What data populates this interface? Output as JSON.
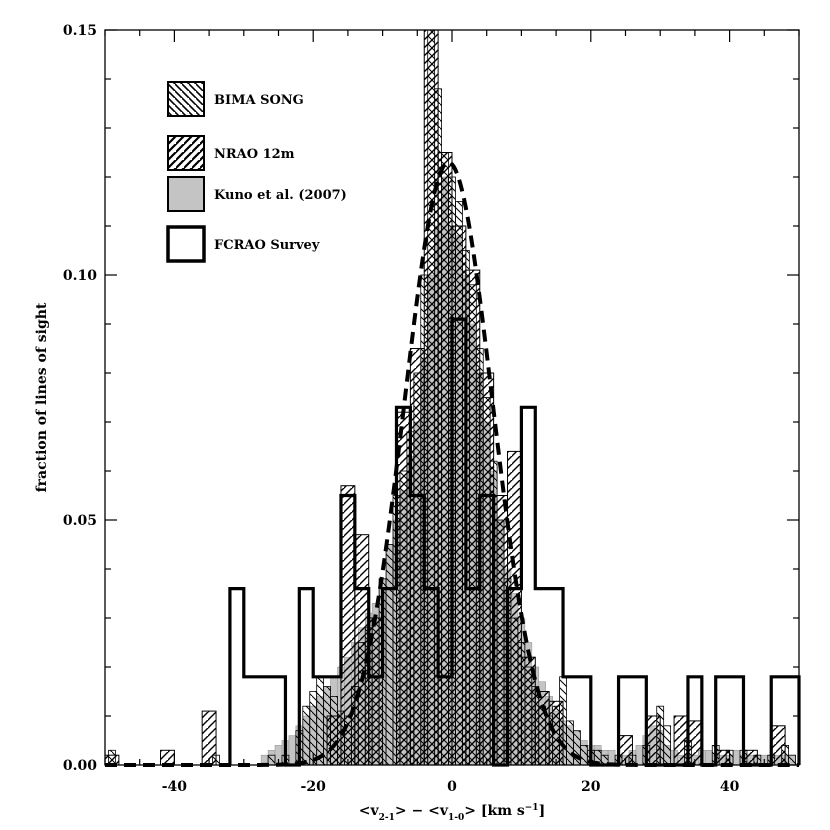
{
  "chart_data": {
    "type": "bar",
    "xlabel": "<v",
    "xlabel_sub1": "2-1",
    "xlabel_mid": "> − <v",
    "xlabel_sub2": "1-0",
    "xlabel_unit": "> [km s",
    "xlabel_sup": "−1",
    "xlabel_end": "]",
    "ylabel": "fraction of lines of sight",
    "xlim": [
      -50,
      50
    ],
    "ylim": [
      0,
      0.15
    ],
    "x_ticks": [
      -40,
      -20,
      0,
      20,
      40
    ],
    "y_ticks": [
      0.0,
      0.05,
      0.1,
      0.15
    ],
    "y_tick_labels": [
      "0.00",
      "0.05",
      "0.10",
      "0.15"
    ],
    "legend_position": "top-left",
    "legend": [
      {
        "name": "BIMA SONG",
        "style": "hatch-backslash"
      },
      {
        "name": "NRAO 12m",
        "style": "hatch-slash"
      },
      {
        "name": "Kuno et al. (2007)",
        "style": "gray-fill"
      },
      {
        "name": "FCRAO Survey",
        "style": "thick-outline"
      }
    ],
    "series": [
      {
        "name": "BIMA SONG",
        "bin_width": 1,
        "bins": [
          [
            -49,
            0.003
          ],
          [
            -34,
            0.002
          ],
          [
            -26,
            0.002
          ],
          [
            -24,
            0.002
          ],
          [
            -22,
            0.007
          ],
          [
            -21,
            0.012
          ],
          [
            -20,
            0.015
          ],
          [
            -19,
            0.018
          ],
          [
            -18,
            0.016
          ],
          [
            -17,
            0.014
          ],
          [
            -16,
            0.011
          ],
          [
            -15,
            0.01
          ],
          [
            -14,
            0.016
          ],
          [
            -13,
            0.025
          ],
          [
            -12,
            0.028
          ],
          [
            -11,
            0.03
          ],
          [
            -10,
            0.038
          ],
          [
            -9,
            0.045
          ],
          [
            -8,
            0.055
          ],
          [
            -7,
            0.06
          ],
          [
            -6,
            0.068
          ],
          [
            -5,
            0.08
          ],
          [
            -4,
            0.1
          ],
          [
            -3,
            0.15
          ],
          [
            -2,
            0.138
          ],
          [
            -1,
            0.125
          ],
          [
            0,
            0.12
          ],
          [
            1,
            0.115
          ],
          [
            2,
            0.105
          ],
          [
            3,
            0.098
          ],
          [
            4,
            0.085
          ],
          [
            5,
            0.075
          ],
          [
            6,
            0.062
          ],
          [
            7,
            0.05
          ],
          [
            8,
            0.038
          ],
          [
            9,
            0.03
          ],
          [
            10,
            0.025
          ],
          [
            11,
            0.02
          ],
          [
            12,
            0.016
          ],
          [
            13,
            0.012
          ],
          [
            14,
            0.01
          ],
          [
            15,
            0.012
          ],
          [
            16,
            0.018
          ],
          [
            17,
            0.009
          ],
          [
            18,
            0.007
          ],
          [
            19,
            0.004
          ],
          [
            20,
            0.003
          ],
          [
            21,
            0.003
          ],
          [
            22,
            0.002
          ],
          [
            24,
            0.002
          ],
          [
            26,
            0.002
          ],
          [
            28,
            0.004
          ],
          [
            30,
            0.012
          ],
          [
            31,
            0.008
          ],
          [
            34,
            0.005
          ],
          [
            38,
            0.004
          ],
          [
            40,
            0.003
          ],
          [
            42,
            0.003
          ],
          [
            44,
            0.002
          ],
          [
            46,
            0.002
          ],
          [
            48,
            0.004
          ],
          [
            49,
            0.002
          ]
        ]
      },
      {
        "name": "NRAO 12m",
        "bin_width": 2,
        "bins": [
          [
            -49,
            0.002
          ],
          [
            -41,
            0.003
          ],
          [
            -35,
            0.011
          ],
          [
            -17,
            0.01
          ],
          [
            -15,
            0.057
          ],
          [
            -13,
            0.047
          ],
          [
            -11,
            0.03
          ],
          [
            -7,
            0.072
          ],
          [
            -5,
            0.085
          ],
          [
            -3,
            0.15
          ],
          [
            -1,
            0.125
          ],
          [
            1,
            0.11
          ],
          [
            3,
            0.101
          ],
          [
            5,
            0.08
          ],
          [
            7,
            0.055
          ],
          [
            9,
            0.064
          ],
          [
            11,
            0.022
          ],
          [
            13,
            0.015
          ],
          [
            15,
            0.013
          ],
          [
            25,
            0.006
          ],
          [
            29,
            0.01
          ],
          [
            33,
            0.01
          ],
          [
            35,
            0.009
          ],
          [
            39,
            0.003
          ],
          [
            43,
            0.003
          ],
          [
            47,
            0.008
          ]
        ]
      },
      {
        "name": "Kuno et al. (2007)",
        "bin_width": 1,
        "bins": [
          [
            -27,
            0.002
          ],
          [
            -26,
            0.003
          ],
          [
            -25,
            0.004
          ],
          [
            -24,
            0.005
          ],
          [
            -23,
            0.006
          ],
          [
            -22,
            0.008
          ],
          [
            -21,
            0.01
          ],
          [
            -20,
            0.012
          ],
          [
            -19,
            0.014
          ],
          [
            -18,
            0.016
          ],
          [
            -17,
            0.018
          ],
          [
            -16,
            0.02
          ],
          [
            -15,
            0.022
          ],
          [
            -14,
            0.025
          ],
          [
            -13,
            0.028
          ],
          [
            -12,
            0.031
          ],
          [
            -11,
            0.033
          ],
          [
            -10,
            0.038
          ],
          [
            -9,
            0.045
          ],
          [
            -8,
            0.05
          ],
          [
            -7,
            0.056
          ],
          [
            -6,
            0.063
          ],
          [
            -5,
            0.07
          ],
          [
            -4,
            0.083
          ],
          [
            -3,
            0.1
          ],
          [
            -2,
            0.11
          ],
          [
            -1,
            0.12
          ],
          [
            0,
            0.11
          ],
          [
            1,
            0.108
          ],
          [
            2,
            0.1
          ],
          [
            3,
            0.09
          ],
          [
            4,
            0.08
          ],
          [
            5,
            0.07
          ],
          [
            6,
            0.06
          ],
          [
            7,
            0.05
          ],
          [
            8,
            0.04
          ],
          [
            9,
            0.035
          ],
          [
            10,
            0.03
          ],
          [
            11,
            0.025
          ],
          [
            12,
            0.02
          ],
          [
            13,
            0.017
          ],
          [
            14,
            0.014
          ],
          [
            15,
            0.011
          ],
          [
            16,
            0.009
          ],
          [
            17,
            0.008
          ],
          [
            18,
            0.007
          ],
          [
            19,
            0.005
          ],
          [
            20,
            0.004
          ],
          [
            21,
            0.004
          ],
          [
            22,
            0.003
          ],
          [
            23,
            0.003
          ],
          [
            24,
            0.002
          ],
          [
            25,
            0.002
          ],
          [
            26,
            0.003
          ],
          [
            27,
            0.004
          ],
          [
            28,
            0.006
          ],
          [
            29,
            0.008
          ],
          [
            30,
            0.007
          ],
          [
            31,
            0.004
          ],
          [
            32,
            0.003
          ],
          [
            33,
            0.002
          ],
          [
            34,
            0.002
          ],
          [
            35,
            0.002
          ],
          [
            36,
            0.003
          ],
          [
            37,
            0.003
          ],
          [
            38,
            0.002
          ],
          [
            39,
            0.002
          ],
          [
            40,
            0.002
          ],
          [
            41,
            0.003
          ],
          [
            42,
            0.002
          ],
          [
            43,
            0.002
          ],
          [
            44,
            0.002
          ],
          [
            45,
            0.002
          ],
          [
            46,
            0.002
          ],
          [
            47,
            0.002
          ],
          [
            48,
            0.002
          ],
          [
            49,
            0.002
          ]
        ]
      },
      {
        "name": "FCRAO Survey",
        "bin_width": 2,
        "bins": [
          [
            -31,
            0.036
          ],
          [
            -29,
            0.018
          ],
          [
            -27,
            0.018
          ],
          [
            -25,
            0.018
          ],
          [
            -23,
            0.0
          ],
          [
            -21,
            0.036
          ],
          [
            -19,
            0.018
          ],
          [
            -17,
            0.018
          ],
          [
            -15,
            0.055
          ],
          [
            -13,
            0.036
          ],
          [
            -11,
            0.018
          ],
          [
            -9,
            0.036
          ],
          [
            -7,
            0.073
          ],
          [
            -5,
            0.055
          ],
          [
            -3,
            0.036
          ],
          [
            -1,
            0.018
          ],
          [
            1,
            0.091
          ],
          [
            3,
            0.036
          ],
          [
            5,
            0.055
          ],
          [
            7,
            0.0
          ],
          [
            9,
            0.036
          ],
          [
            11,
            0.073
          ],
          [
            13,
            0.036
          ],
          [
            15,
            0.036
          ],
          [
            17,
            0.018
          ],
          [
            19,
            0.018
          ],
          [
            21,
            0.0
          ],
          [
            23,
            0.0
          ],
          [
            25,
            0.018
          ],
          [
            27,
            0.018
          ],
          [
            29,
            0.0
          ],
          [
            31,
            0.0
          ],
          [
            33,
            0.0
          ],
          [
            35,
            0.018
          ],
          [
            37,
            0.0
          ],
          [
            39,
            0.018
          ],
          [
            41,
            0.018
          ],
          [
            43,
            0.0
          ],
          [
            45,
            0.0
          ],
          [
            47,
            0.018
          ],
          [
            49,
            0.018
          ]
        ]
      }
    ],
    "gaussian_fit": {
      "style": "dashed",
      "amplitude": 0.123,
      "mean": -0.5,
      "sigma": 6.3
    }
  }
}
